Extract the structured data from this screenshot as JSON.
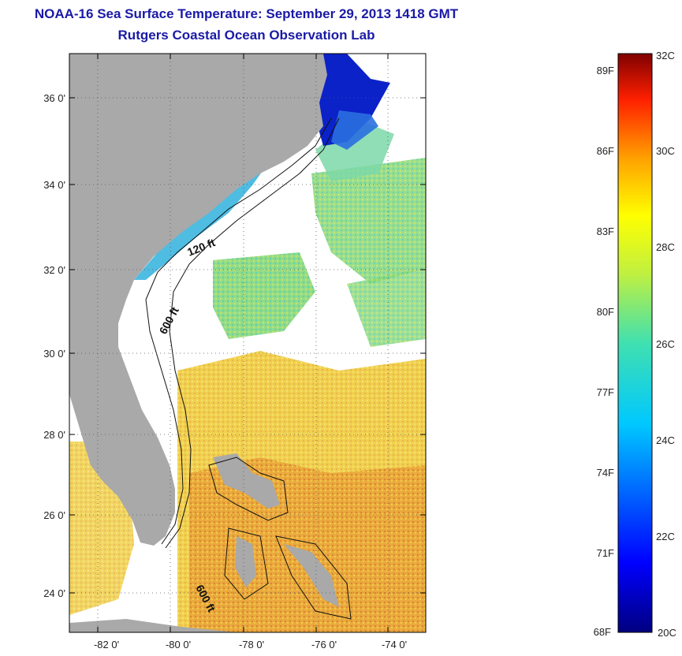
{
  "title": {
    "line1": "NOAA-16 Sea Surface Temperature:  September 29, 2013 1418 GMT",
    "line2": "Rutgers Coastal Ocean Observation Lab"
  },
  "map": {
    "lat_ticks": [
      "36 0'",
      "34 0'",
      "32 0'",
      "30 0'",
      "28 0'",
      "26 0'",
      "24 0'"
    ],
    "lon_ticks": [
      "-82 0'",
      "-80 0'",
      "-78 0'",
      "-76 0'",
      "-74 0'"
    ],
    "contour_labels": [
      "120 ft",
      "600 ft",
      "600 ft"
    ],
    "colors": {
      "land": "#a9a9a9",
      "cloud": "#ffffff",
      "cold": "#0a1fd0",
      "cyan": "#30d0e8",
      "green": "#7fe070",
      "yellow": "#f0d830",
      "orange": "#e89030"
    }
  },
  "colorbar": {
    "fahrenheit": [
      "89F",
      "86F",
      "83F",
      "80F",
      "77F",
      "74F",
      "71F",
      "68F"
    ],
    "celsius": [
      "32C",
      "30C",
      "28C",
      "26C",
      "24C",
      "22C",
      "20C"
    ],
    "range_c": [
      20,
      32
    ]
  }
}
